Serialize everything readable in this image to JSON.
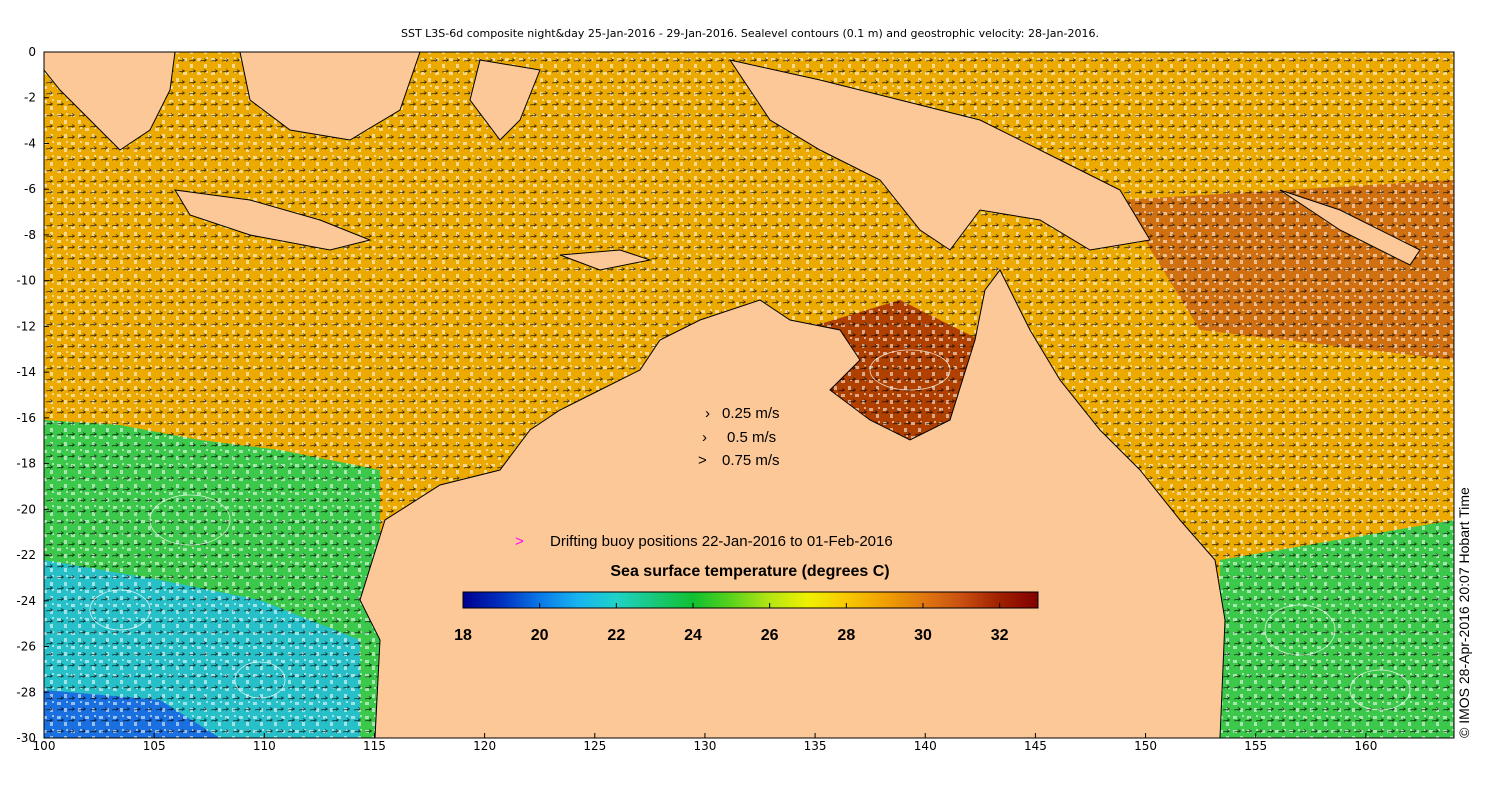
{
  "title": "SST L3S-6d composite night&day 25-Jan-2016 - 29-Jan-2016. Sealevel contours (0.1 m) and geostrophic velocity: 28-Jan-2016.",
  "credit": "© IMOS 28-Apr-2016 20:07 Hobart Time",
  "axes": {
    "x_ticks": [
      "100",
      "105",
      "110",
      "115",
      "120",
      "125",
      "130",
      "135",
      "140",
      "145",
      "150",
      "155",
      "160"
    ],
    "y_ticks": [
      "0",
      "-2",
      "-4",
      "-6",
      "-8",
      "-10",
      "-12",
      "-14",
      "-16",
      "-18",
      "-20",
      "-22",
      "-24",
      "-26",
      "-28",
      "-30"
    ],
    "lon_range": [
      100,
      164
    ],
    "lat_range": [
      -30,
      0
    ]
  },
  "velocity_legend": {
    "items": [
      {
        "label": "0.25 m/s"
      },
      {
        "label": "0.5 m/s"
      },
      {
        "label": "0.75 m/s"
      }
    ]
  },
  "buoy_legend": {
    "marker": ">",
    "label": "Drifting buoy positions 22-Jan-2016 to 01-Feb-2016",
    "color": "#ff00ff"
  },
  "colorbar": {
    "title": "Sea surface temperature (degrees C)",
    "range": [
      18,
      33
    ],
    "tick_values": [
      18,
      20,
      22,
      24,
      26,
      28,
      30,
      32
    ],
    "tick_labels": [
      "18",
      "20",
      "22",
      "24",
      "26",
      "28",
      "30",
      "32"
    ],
    "colors": [
      "#00008f",
      "#0030c0",
      "#0a78e6",
      "#18b4f0",
      "#20d2c8",
      "#18c878",
      "#10c030",
      "#5ad21c",
      "#b4e614",
      "#f0f000",
      "#f8c800",
      "#f0a000",
      "#e07810",
      "#c85010",
      "#a02000",
      "#800000"
    ]
  },
  "colors": {
    "land": "#fcc898",
    "coast": "#000000",
    "ocean_warm": "#e8a000",
    "ocean_hot": "#d07010",
    "ocean_cool": "#40c840",
    "ocean_cold": "#30b4e8"
  }
}
